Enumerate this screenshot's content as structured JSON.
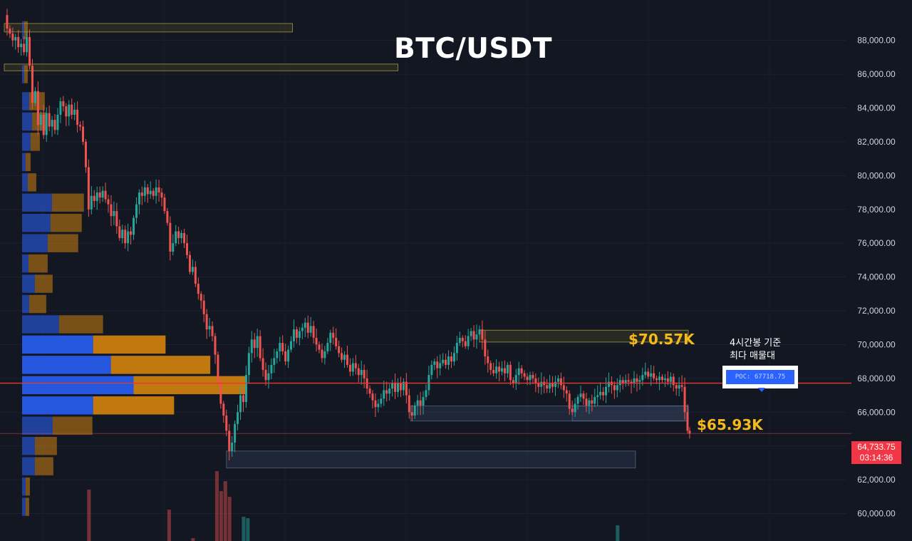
{
  "title": "BTC/USDT",
  "annotations": {
    "resistance": "$70.57K",
    "support": "$65.93K",
    "note_line1": "4시간봉 기준",
    "note_line2": "최다 매물대",
    "poc_label": "POC: 67718.75"
  },
  "last_price": {
    "value": "64,733.75",
    "countdown": "03:14:36"
  },
  "colors": {
    "background": "#131722",
    "up": "#26a69a",
    "down": "#ef5350",
    "poc_line": "#e53935",
    "profile_up": "#2962ff",
    "profile_down": "#e0890b",
    "annotation": "#f5b91a",
    "axis_text": "#d1d4dc"
  },
  "chart_data": {
    "type": "candlestick",
    "y_axis_side": "right",
    "ylim": [
      59600,
      89800
    ],
    "ytick_labels": [
      "60,000.00",
      "62,000.00",
      "64,000.00",
      "66,000.00",
      "68,000.00",
      "70,000.00",
      "72,000.00",
      "74,000.00",
      "76,000.00",
      "78,000.00",
      "80,000.00",
      "82,000.00",
      "84,000.00",
      "86,000.00",
      "88,000.00"
    ],
    "poc_price": 67718.75,
    "last_price": 64733.75,
    "price_path": [
      [
        0,
        89500
      ],
      [
        4,
        88700
      ],
      [
        8,
        88400
      ],
      [
        12,
        88000
      ],
      [
        16,
        88200
      ],
      [
        20,
        87600
      ],
      [
        24,
        87800
      ],
      [
        28,
        87300
      ],
      [
        32,
        88200
      ],
      [
        36,
        86500
      ],
      [
        40,
        84300
      ],
      [
        44,
        85000
      ],
      [
        48,
        83000
      ],
      [
        52,
        83600
      ],
      [
        56,
        82400
      ],
      [
        60,
        83700
      ],
      [
        64,
        82900
      ],
      [
        68,
        83300
      ],
      [
        72,
        82700
      ],
      [
        76,
        83600
      ],
      [
        80,
        84400
      ],
      [
        84,
        84100
      ],
      [
        88,
        83500
      ],
      [
        92,
        84200
      ],
      [
        96,
        83600
      ],
      [
        100,
        83900
      ],
      [
        104,
        83000
      ],
      [
        108,
        82900
      ],
      [
        112,
        82000
      ],
      [
        116,
        80500
      ],
      [
        120,
        78000
      ],
      [
        124,
        78800
      ],
      [
        128,
        78500
      ],
      [
        132,
        79000
      ],
      [
        136,
        78700
      ],
      [
        140,
        79100
      ],
      [
        144,
        78600
      ],
      [
        148,
        78300
      ],
      [
        152,
        77600
      ],
      [
        156,
        77900
      ],
      [
        160,
        77000
      ],
      [
        164,
        76300
      ],
      [
        168,
        76800
      ],
      [
        172,
        76000
      ],
      [
        176,
        76700
      ],
      [
        180,
        76500
      ],
      [
        184,
        77500
      ],
      [
        188,
        78300
      ],
      [
        192,
        79000
      ],
      [
        196,
        78800
      ],
      [
        200,
        79300
      ],
      [
        204,
        78900
      ],
      [
        208,
        79100
      ],
      [
        212,
        78800
      ],
      [
        216,
        79300
      ],
      [
        220,
        79000
      ],
      [
        224,
        78700
      ],
      [
        228,
        77900
      ],
      [
        232,
        77200
      ],
      [
        236,
        75500
      ],
      [
        240,
        76000
      ],
      [
        244,
        76700
      ],
      [
        248,
        76300
      ],
      [
        252,
        76600
      ],
      [
        256,
        76000
      ],
      [
        260,
        75300
      ],
      [
        264,
        74300
      ],
      [
        268,
        74600
      ],
      [
        272,
        73600
      ],
      [
        276,
        73000
      ],
      [
        280,
        72600
      ],
      [
        284,
        71800
      ],
      [
        288,
        70900
      ],
      [
        292,
        71100
      ],
      [
        296,
        70500
      ],
      [
        300,
        69400
      ],
      [
        304,
        67800
      ],
      [
        308,
        66500
      ],
      [
        312,
        65800
      ],
      [
        316,
        64900
      ],
      [
        320,
        63700
      ],
      [
        324,
        64200
      ],
      [
        328,
        65300
      ],
      [
        332,
        66000
      ],
      [
        336,
        67000
      ],
      [
        340,
        66600
      ],
      [
        344,
        68200
      ],
      [
        348,
        69500
      ],
      [
        352,
        70300
      ],
      [
        356,
        69800
      ],
      [
        360,
        70500
      ],
      [
        364,
        69200
      ],
      [
        368,
        68500
      ],
      [
        372,
        67900
      ],
      [
        376,
        68300
      ],
      [
        380,
        68800
      ],
      [
        384,
        69200
      ],
      [
        388,
        69600
      ],
      [
        392,
        70100
      ],
      [
        396,
        69600
      ],
      [
        400,
        69000
      ],
      [
        404,
        69700
      ],
      [
        408,
        70200
      ],
      [
        412,
        70900
      ],
      [
        416,
        70400
      ],
      [
        420,
        70800
      ],
      [
        424,
        71000
      ],
      [
        428,
        71300
      ],
      [
        432,
        70700
      ],
      [
        436,
        71100
      ],
      [
        440,
        70400
      ],
      [
        444,
        70000
      ],
      [
        448,
        69700
      ],
      [
        452,
        69200
      ],
      [
        456,
        69600
      ],
      [
        460,
        70100
      ],
      [
        464,
        70700
      ],
      [
        468,
        70400
      ],
      [
        472,
        69900
      ],
      [
        476,
        69500
      ],
      [
        480,
        69100
      ],
      [
        484,
        69400
      ],
      [
        488,
        68800
      ],
      [
        492,
        68400
      ],
      [
        496,
        68900
      ],
      [
        500,
        68600
      ],
      [
        504,
        68200
      ],
      [
        508,
        68500
      ],
      [
        512,
        68000
      ],
      [
        516,
        67400
      ],
      [
        520,
        67100
      ],
      [
        524,
        66700
      ],
      [
        528,
        66300
      ],
      [
        532,
        66500
      ],
      [
        536,
        66800
      ],
      [
        540,
        67300
      ],
      [
        544,
        67100
      ],
      [
        548,
        67400
      ],
      [
        552,
        67700
      ],
      [
        556,
        67200
      ],
      [
        560,
        67700
      ],
      [
        564,
        67300
      ],
      [
        568,
        67800
      ],
      [
        572,
        67000
      ],
      [
        576,
        66000
      ],
      [
        580,
        65800
      ],
      [
        584,
        66400
      ],
      [
        588,
        66700
      ],
      [
        592,
        66400
      ],
      [
        596,
        66900
      ],
      [
        600,
        67300
      ],
      [
        604,
        68200
      ],
      [
        608,
        68800
      ],
      [
        612,
        69000
      ],
      [
        616,
        68600
      ],
      [
        620,
        68900
      ],
      [
        624,
        69100
      ],
      [
        628,
        68800
      ],
      [
        632,
        69300
      ],
      [
        636,
        69000
      ],
      [
        640,
        69500
      ],
      [
        644,
        70100
      ],
      [
        648,
        70400
      ],
      [
        652,
        70200
      ],
      [
        656,
        69900
      ],
      [
        660,
        70500
      ],
      [
        664,
        70800
      ],
      [
        668,
        70300
      ],
      [
        672,
        70600
      ],
      [
        676,
        70900
      ],
      [
        680,
        70300
      ],
      [
        684,
        69300
      ],
      [
        688,
        68900
      ],
      [
        692,
        68500
      ],
      [
        696,
        68300
      ],
      [
        700,
        68700
      ],
      [
        704,
        68400
      ],
      [
        708,
        68600
      ],
      [
        712,
        68300
      ],
      [
        716,
        68800
      ],
      [
        720,
        67900
      ],
      [
        724,
        67700
      ],
      [
        728,
        68200
      ],
      [
        732,
        68600
      ],
      [
        736,
        68300
      ],
      [
        740,
        68100
      ],
      [
        744,
        67900
      ],
      [
        748,
        68200
      ],
      [
        752,
        68000
      ],
      [
        756,
        67700
      ],
      [
        760,
        67500
      ],
      [
        764,
        67800
      ],
      [
        768,
        67600
      ],
      [
        772,
        67400
      ],
      [
        776,
        67700
      ],
      [
        780,
        67500
      ],
      [
        784,
        67800
      ],
      [
        788,
        68000
      ],
      [
        792,
        67600
      ],
      [
        796,
        67300
      ],
      [
        800,
        67100
      ],
      [
        804,
        66200
      ],
      [
        808,
        66000
      ],
      [
        812,
        66500
      ],
      [
        816,
        66900
      ],
      [
        820,
        67100
      ],
      [
        824,
        66800
      ],
      [
        828,
        66400
      ],
      [
        832,
        66700
      ],
      [
        836,
        66500
      ],
      [
        840,
        66900
      ],
      [
        844,
        67000
      ],
      [
        848,
        67200
      ],
      [
        852,
        67000
      ],
      [
        856,
        67500
      ],
      [
        860,
        67800
      ],
      [
        864,
        67600
      ],
      [
        868,
        67300
      ],
      [
        872,
        67600
      ],
      [
        876,
        67900
      ],
      [
        880,
        67700
      ],
      [
        884,
        67900
      ],
      [
        888,
        67800
      ],
      [
        892,
        67700
      ],
      [
        896,
        68000
      ],
      [
        900,
        67800
      ],
      [
        904,
        67900
      ],
      [
        908,
        68200
      ],
      [
        912,
        68400
      ],
      [
        916,
        68100
      ],
      [
        920,
        68300
      ],
      [
        924,
        68000
      ],
      [
        928,
        67900
      ],
      [
        932,
        68100
      ],
      [
        936,
        67900
      ],
      [
        940,
        68000
      ],
      [
        944,
        67800
      ],
      [
        948,
        68100
      ],
      [
        952,
        67600
      ],
      [
        956,
        67400
      ],
      [
        960,
        67600
      ],
      [
        964,
        67500
      ],
      [
        968,
        66000
      ],
      [
        972,
        64900
      ],
      [
        975,
        64733
      ]
    ],
    "volume_profile_buckets": [
      {
        "price": 88600,
        "up": 3,
        "down": 5
      },
      {
        "price": 86000,
        "up": 3,
        "down": 5
      },
      {
        "price": 84400,
        "up": 10,
        "down": 22
      },
      {
        "price": 83200,
        "up": 14,
        "down": 20
      },
      {
        "price": 82000,
        "up": 12,
        "down": 13
      },
      {
        "price": 80800,
        "up": 5,
        "down": 7
      },
      {
        "price": 79600,
        "up": 8,
        "down": 12
      },
      {
        "price": 78400,
        "up": 42,
        "down": 45
      },
      {
        "price": 77200,
        "up": 40,
        "down": 44
      },
      {
        "price": 76000,
        "up": 36,
        "down": 43
      },
      {
        "price": 74800,
        "up": 9,
        "down": 27
      },
      {
        "price": 73600,
        "up": 18,
        "down": 25
      },
      {
        "price": 72400,
        "up": 10,
        "down": 24
      },
      {
        "price": 71200,
        "up": 52,
        "down": 62
      },
      {
        "price": 70000,
        "up": 100,
        "down": 102
      },
      {
        "price": 68800,
        "up": 125,
        "down": 140
      },
      {
        "price": 67600,
        "up": 157,
        "down": 160
      },
      {
        "price": 66400,
        "up": 100,
        "down": 114
      },
      {
        "price": 65200,
        "up": 43,
        "down": 56
      },
      {
        "price": 64000,
        "up": 18,
        "down": 31
      },
      {
        "price": 62800,
        "up": 18,
        "down": 26
      },
      {
        "price": 61600,
        "up": 5,
        "down": 6
      },
      {
        "price": 60400,
        "up": 5,
        "down": 5
      }
    ],
    "volume_bars": [
      {
        "x": 120,
        "v": 72,
        "dir": "down"
      },
      {
        "x": 234,
        "v": 44,
        "dir": "down"
      },
      {
        "x": 268,
        "v": 4,
        "dir": "down"
      },
      {
        "x": 302,
        "v": 98,
        "dir": "down"
      },
      {
        "x": 308,
        "v": 70,
        "dir": "down"
      },
      {
        "x": 314,
        "v": 84,
        "dir": "down"
      },
      {
        "x": 320,
        "v": 62,
        "dir": "down"
      },
      {
        "x": 340,
        "v": 34,
        "dir": "up"
      },
      {
        "x": 346,
        "v": 32,
        "dir": "up"
      },
      {
        "x": 872,
        "v": 22,
        "dir": "up"
      }
    ],
    "zones": [
      {
        "price_low": 88500,
        "price_high": 89000,
        "start": 0,
        "end": 410,
        "kind": "resistance"
      },
      {
        "price_low": 86200,
        "price_high": 86600,
        "start": 0,
        "end": 560,
        "kind": "resistance"
      },
      {
        "price_low": 70150,
        "price_high": 70850,
        "start": 676,
        "end": 973,
        "kind": "resistance"
      },
      {
        "price_low": 65480,
        "price_high": 66370,
        "start": 578,
        "end": 973,
        "kind": "support"
      },
      {
        "price_low": 65480,
        "price_high": 66370,
        "start": 808,
        "end": 973,
        "kind": "support"
      },
      {
        "price_low": 62700,
        "price_high": 63700,
        "start": 316,
        "end": 898,
        "kind": "support"
      }
    ]
  }
}
